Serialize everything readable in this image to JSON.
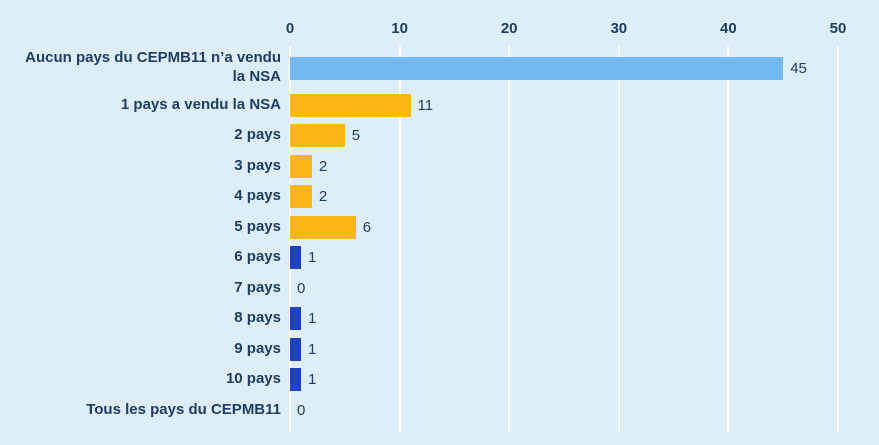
{
  "page": {
    "background_color": "#ddeef9",
    "text_color": "#1e3d64",
    "grid_color": "#ffffff"
  },
  "chart_data": {
    "type": "bar",
    "orientation": "horizontal",
    "title": "",
    "xlabel": "",
    "ylabel": "",
    "axis_position": "top",
    "xlim": [
      0,
      50
    ],
    "ticks": [
      0,
      10,
      20,
      30,
      40,
      50
    ],
    "grid": true,
    "categories": [
      "Aucun pays du CEPMB11 n’a vendu\nla NSA",
      "1 pays a vendu la NSA",
      "2 pays",
      "3 pays",
      "4 pays",
      "5 pays",
      "6 pays",
      "7 pays",
      "8 pays",
      "9 pays",
      "10 pays",
      "Tous les pays du CEPMB11"
    ],
    "values": [
      45,
      11,
      5,
      2,
      2,
      6,
      1,
      0,
      1,
      1,
      1,
      0
    ],
    "bar_colors": [
      "#72b9ef",
      "#fcb615",
      "#fcb615",
      "#fcb615",
      "#fcb615",
      "#fcb615",
      "#2140c8",
      "#2140c8",
      "#2140c8",
      "#2140c8",
      "#2140c8",
      "#fcb615"
    ],
    "colors_legend": {
      "light_blue": "#72b9ef",
      "yellow": "#fcb615",
      "dark_blue": "#2140c8"
    }
  }
}
